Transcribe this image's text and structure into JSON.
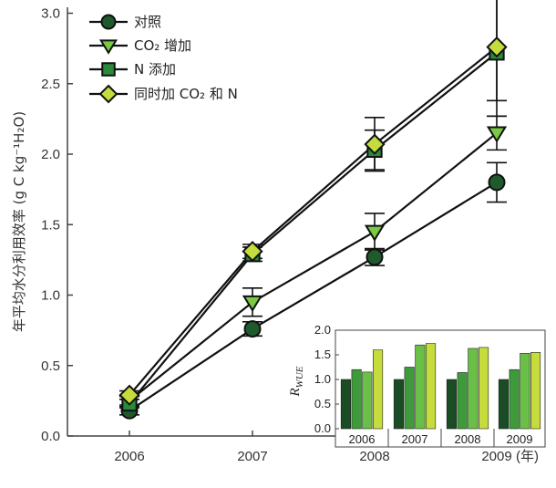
{
  "colors": {
    "control": "#1f5a2c",
    "co2": "#7ac943",
    "n": "#2a8a3c",
    "both": "#c5dc3c",
    "line": "#111111",
    "axis": "#444444"
  },
  "chart_data": {
    "type": "line",
    "ylabel": "年平均水分利用效率 (g C kg⁻¹H₂O)",
    "x_unit_label": "(年)",
    "categories": [
      "2006",
      "2007",
      "2008",
      "2009"
    ],
    "ylim": [
      0,
      3.25
    ],
    "yticks": [
      "0.0",
      "0.5",
      "1.0",
      "1.5",
      "2.0",
      "2.5",
      "3.0"
    ],
    "grid": false,
    "legend_position": "top-left",
    "series": [
      {
        "name": "对照",
        "marker": "circle",
        "color": "#1f5a2c",
        "values": [
          0.18,
          0.76,
          1.27,
          1.8
        ],
        "errors": [
          0.03,
          0.05,
          0.06,
          0.14
        ]
      },
      {
        "name": "CO₂ 增加",
        "marker": "triangle-down",
        "color": "#7ac943",
        "values": [
          0.25,
          0.95,
          1.45,
          2.15
        ],
        "errors": [
          0.03,
          0.1,
          0.13,
          0.12
        ]
      },
      {
        "name": "N 添加",
        "marker": "square",
        "color": "#2a8a3c",
        "values": [
          0.23,
          1.29,
          2.03,
          2.72
        ],
        "errors": [
          0.03,
          0.05,
          0.14,
          0.45
        ]
      },
      {
        "name": "同时加 CO₂ 和 N",
        "marker": "diamond",
        "color": "#c5dc3c",
        "values": [
          0.29,
          1.31,
          2.07,
          2.76
        ],
        "errors": [
          0.03,
          0.05,
          0.19,
          0.38
        ]
      }
    ],
    "inset": {
      "type": "bar",
      "ylabel": "R_WUE",
      "ylabel_main": "R",
      "ylabel_sub": "WUE",
      "categories": [
        "2006",
        "2007",
        "2008",
        "2009"
      ],
      "ylim": [
        0,
        2.0
      ],
      "yticks": [
        "0.0",
        "0.5",
        "1.0",
        "1.5",
        "2.0"
      ],
      "series": [
        {
          "color": "#1a4d24",
          "values": [
            1.0,
            1.0,
            1.0,
            1.0
          ]
        },
        {
          "color": "#3f9a3b",
          "values": [
            1.2,
            1.25,
            1.14,
            1.2
          ]
        },
        {
          "color": "#6ac046",
          "values": [
            1.15,
            1.7,
            1.63,
            1.53
          ]
        },
        {
          "color": "#c5dc3c",
          "values": [
            1.6,
            1.73,
            1.65,
            1.55
          ]
        }
      ]
    }
  }
}
